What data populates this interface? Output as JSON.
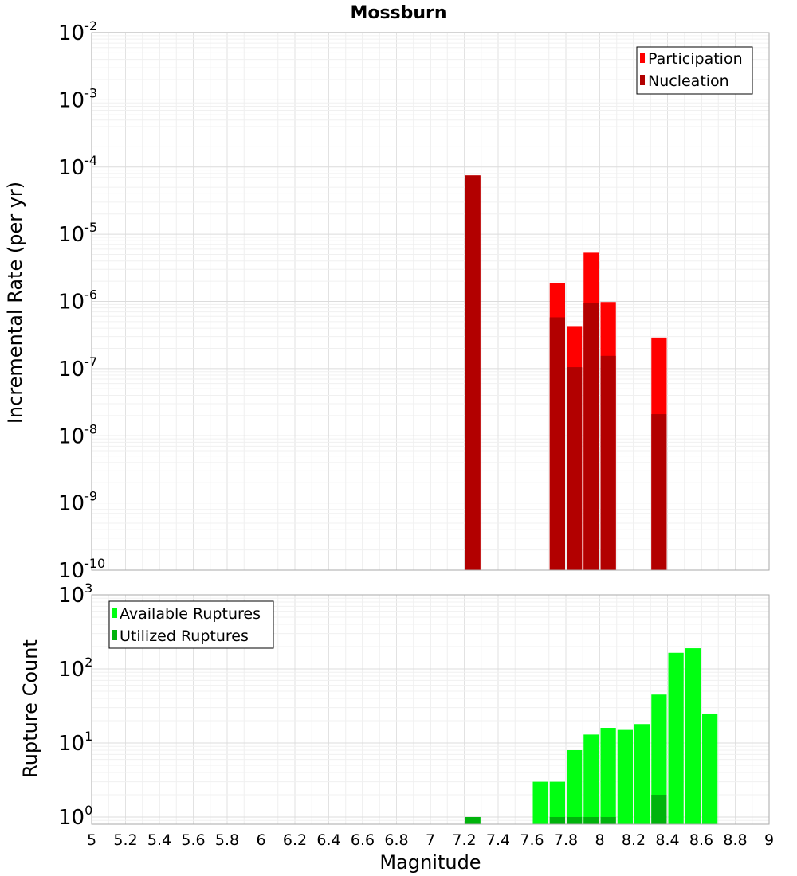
{
  "colors": {
    "participation": "#ff0000",
    "nucleation": "#b20000",
    "available": "#00ff11",
    "utilized": "#00b30c"
  },
  "chart_data": [
    {
      "type": "bar",
      "title": "Mossburn",
      "xlabel": "Magnitude",
      "ylabel": "Incremental Rate (per yr)",
      "yscale": "log",
      "xlim": [
        5,
        9
      ],
      "ylim": [
        1e-10,
        0.01
      ],
      "bin_width": 0.1,
      "y_ticks": [
        {
          "base": "10",
          "exp": "-10",
          "value": 1e-10
        },
        {
          "base": "10",
          "exp": "-9",
          "value": 1e-09
        },
        {
          "base": "10",
          "exp": "-8",
          "value": 1e-08
        },
        {
          "base": "10",
          "exp": "-7",
          "value": 1e-07
        },
        {
          "base": "10",
          "exp": "-6",
          "value": 1e-06
        },
        {
          "base": "10",
          "exp": "-5",
          "value": 1e-05
        },
        {
          "base": "10",
          "exp": "-4",
          "value": 0.0001
        },
        {
          "base": "10",
          "exp": "-3",
          "value": 0.001
        },
        {
          "base": "10",
          "exp": "-2",
          "value": 0.01
        }
      ],
      "legend": {
        "position": "top-right",
        "entries": [
          "Participation",
          "Nucleation"
        ]
      },
      "series": [
        {
          "name": "Participation",
          "x": [
            7.25,
            7.75,
            7.85,
            7.95,
            8.05,
            8.35
          ],
          "values": [
            7.5e-05,
            1.9e-06,
            4.3e-07,
            5.3e-06,
            9.8e-07,
            2.9e-07
          ]
        },
        {
          "name": "Nucleation",
          "x": [
            7.25,
            7.75,
            7.85,
            7.95,
            8.05,
            8.35
          ],
          "values": [
            7.5e-05,
            5.8e-07,
            1.05e-07,
            9.5e-07,
            1.55e-07,
            2.1e-08
          ]
        }
      ]
    },
    {
      "type": "bar",
      "title": "",
      "xlabel": "Magnitude",
      "ylabel": "Rupture Count",
      "yscale": "log",
      "xlim": [
        5,
        9
      ],
      "ylim": [
        0.8,
        1000
      ],
      "bin_width": 0.1,
      "y_ticks": [
        {
          "base": "10",
          "exp": "0",
          "value": 1
        },
        {
          "base": "10",
          "exp": "1",
          "value": 10
        },
        {
          "base": "10",
          "exp": "2",
          "value": 100
        },
        {
          "base": "10",
          "exp": "3",
          "value": 1000
        }
      ],
      "x_ticks": [
        "5",
        "5.2",
        "5.4",
        "5.6",
        "5.8",
        "6",
        "6.2",
        "6.4",
        "6.6",
        "6.8",
        "7",
        "7.2",
        "7.4",
        "7.6",
        "7.8",
        "8",
        "8.2",
        "8.4",
        "8.6",
        "8.8",
        "9"
      ],
      "legend": {
        "position": "top-left",
        "entries": [
          "Available Ruptures",
          "Utilized Ruptures"
        ]
      },
      "series": [
        {
          "name": "Available Ruptures",
          "x": [
            7.25,
            7.65,
            7.75,
            7.85,
            7.95,
            8.05,
            8.15,
            8.25,
            8.35,
            8.45,
            8.55,
            8.65
          ],
          "values": [
            1,
            3,
            3,
            8,
            13,
            16,
            15,
            18,
            45,
            165,
            190,
            25
          ]
        },
        {
          "name": "Utilized Ruptures",
          "x": [
            7.25,
            7.75,
            7.85,
            7.95,
            8.05,
            8.35
          ],
          "values": [
            1,
            1,
            1,
            1,
            1,
            2
          ]
        }
      ]
    }
  ]
}
